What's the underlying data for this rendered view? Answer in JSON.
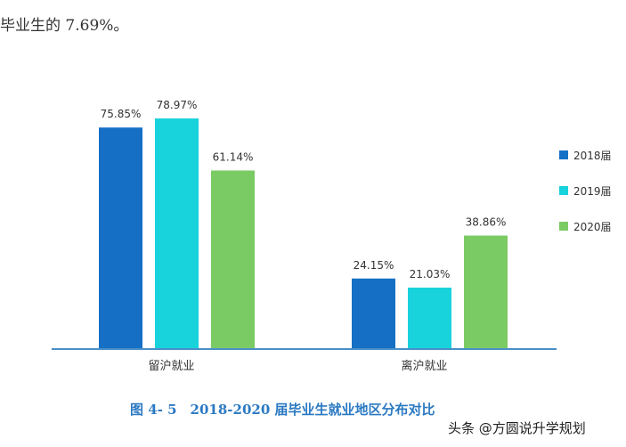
{
  "top_text": "毕业生的 7.69%。",
  "caption": "图 4- 5　2018-2020 届毕业生就业地区分布对比",
  "watermark": "头条 @方圆说升学规划",
  "chart_data": {
    "type": "bar",
    "categories": [
      "留沪就业",
      "离沪就业"
    ],
    "series": [
      {
        "name": "2018届",
        "values": [
          75.85,
          24.15
        ],
        "labels": [
          "75.85%",
          "24.15%"
        ],
        "color": "#1570c5"
      },
      {
        "name": "2019届",
        "values": [
          78.97,
          21.03
        ],
        "labels": [
          "78.97%",
          "21.03%"
        ],
        "color": "#18d2dc"
      },
      {
        "name": "2020届",
        "values": [
          61.14,
          38.86
        ],
        "labels": [
          "61.14%",
          "38.86%"
        ],
        "color": "#7bcb64"
      }
    ],
    "ylim": [
      0,
      100
    ],
    "grid": false,
    "legend": "right",
    "axis_color": "#4a90c8"
  }
}
